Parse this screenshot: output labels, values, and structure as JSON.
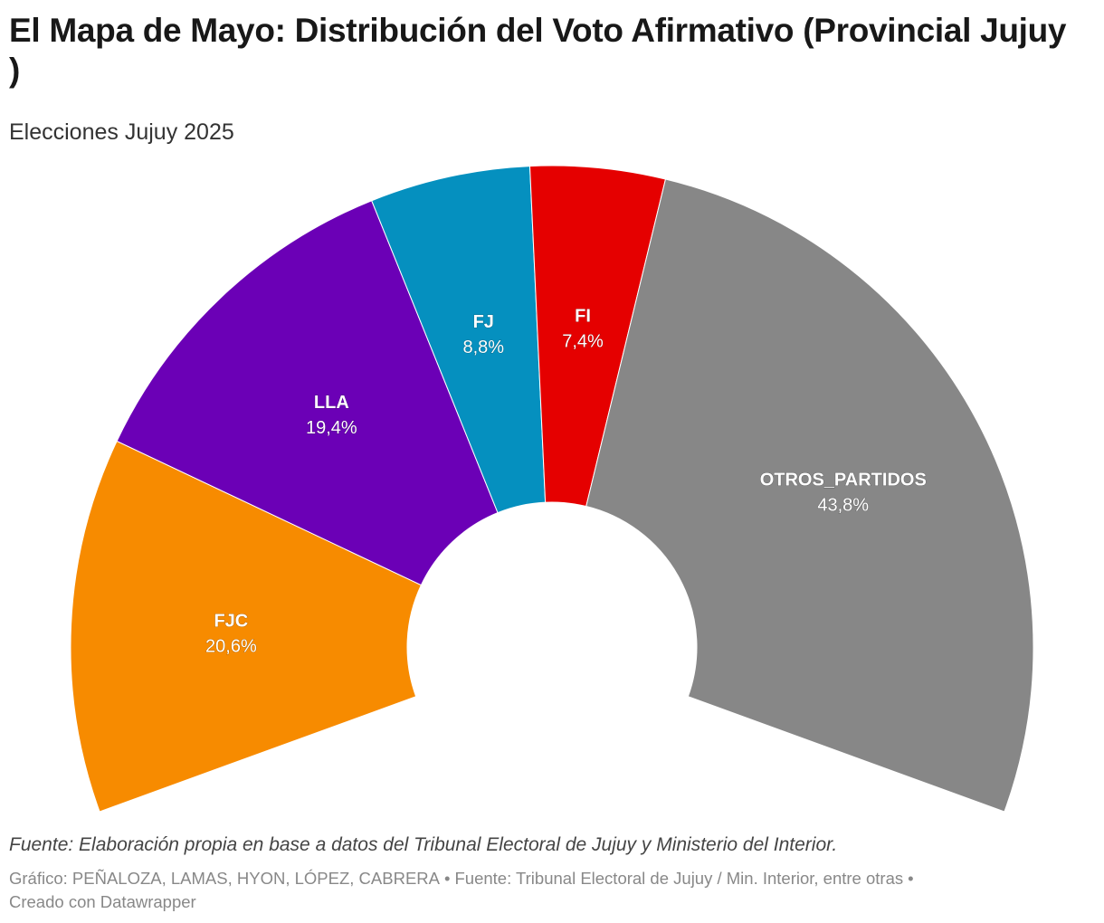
{
  "chart_data": {
    "type": "pie",
    "variant": "semi-donut",
    "title": "El Mapa de Mayo: Distribución del Voto Afirmativo (Provincial Jujuy )",
    "subtitle": "Elecciones Jujuy 2025",
    "total_arc_degrees": 220,
    "slices": [
      {
        "name": "FJC",
        "value": 20.6,
        "value_label": "20,6%",
        "color": "#f78b00"
      },
      {
        "name": "LLA",
        "value": 19.4,
        "value_label": "19,4%",
        "color": "#6b00b6"
      },
      {
        "name": "FJ",
        "value": 8.8,
        "value_label": "8,8%",
        "color": "#0590bf"
      },
      {
        "name": "FI",
        "value": 7.4,
        "value_label": "7,4%",
        "color": "#e50000"
      },
      {
        "name": "OTROS_PARTIDOS",
        "value": 43.8,
        "value_label": "43,8%",
        "color": "#878787"
      }
    ],
    "notes": "Fuente: Elaboración propia en base a datos del Tribunal Electoral de Jujuy y Ministerio del Interior.",
    "byline": "Gráfico: PEÑALOZA, LAMAS, HYON, LÓPEZ, CABRERA",
    "source": "Fuente: Tribunal Electoral de Jujuy / Min. Interior, entre otras",
    "created_with": "Creado con Datawrapper",
    "separator": "•"
  }
}
